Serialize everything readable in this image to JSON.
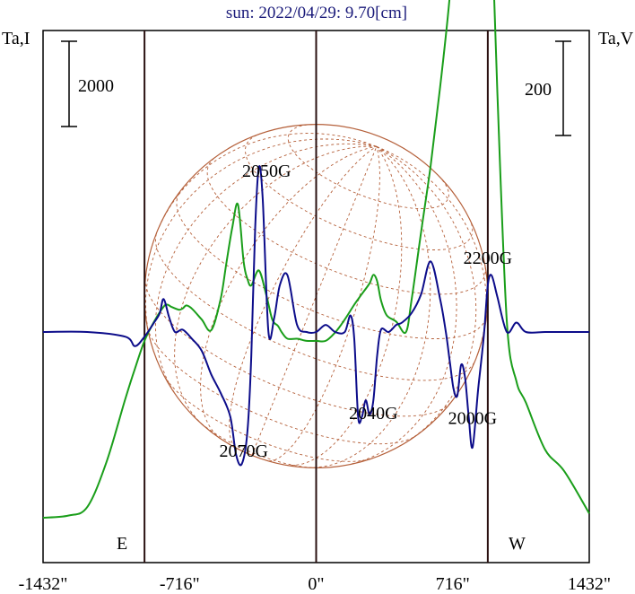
{
  "chart_data": {
    "type": "line",
    "title": "sun: 2022/04/29: 9.70[cm]",
    "left_axis_label": "Ta,I",
    "right_axis_label": "Ta,V",
    "left_scale_bar": "2000",
    "right_scale_bar": "200",
    "x_ticks": [
      "-1432\"",
      "-716\"",
      "0\"",
      "716\"",
      "1432\""
    ],
    "x_tick_values": [
      -1432,
      -716,
      0,
      716,
      1432
    ],
    "xlim": [
      -1432,
      1432
    ],
    "vertical_markers": [
      -900,
      0,
      900
    ],
    "edge_labels": [
      "E",
      "W"
    ],
    "solar_radius_arcsec": 900,
    "annotations": [
      {
        "text": "2050G",
        "x": -260,
        "yV": 330
      },
      {
        "text": "2200G",
        "x": 900,
        "yV": 145
      },
      {
        "text": "2040G",
        "x": 300,
        "yV": -185
      },
      {
        "text": "2000G",
        "x": 820,
        "yV": -195
      },
      {
        "text": "2070G",
        "x": -380,
        "yV": -265
      }
    ],
    "series": [
      {
        "axis": "Ta,I",
        "color": "#1a9e1a",
        "x": [
          -1432,
          -1300,
          -1200,
          -1100,
          -1000,
          -950,
          -900,
          -850,
          -800,
          -780,
          -760,
          -720,
          -700,
          -680,
          -650,
          -600,
          -550,
          -500,
          -470,
          -440,
          -410,
          -380,
          -360,
          -340,
          -300,
          -260,
          -230,
          -200,
          -180,
          -150,
          -100,
          -50,
          0,
          50,
          100,
          150,
          200,
          240,
          280,
          300,
          320,
          340,
          370,
          420,
          470,
          500,
          550,
          600,
          650,
          700,
          730,
          750,
          780,
          800,
          820,
          850,
          880,
          900,
          920,
          950,
          1000,
          1050,
          1100,
          1200,
          1300,
          1432
        ],
        "y": [
          0,
          50,
          250,
          1300,
          2800,
          3500,
          4150,
          4600,
          4950,
          5000,
          4950,
          4880,
          4910,
          4980,
          4900,
          4650,
          4400,
          5150,
          6000,
          6800,
          7350,
          6000,
          5600,
          5450,
          5800,
          5200,
          4650,
          4500,
          4350,
          4200,
          4200,
          4150,
          4150,
          4150,
          4350,
          4650,
          5000,
          5250,
          5500,
          5700,
          5550,
          5100,
          4750,
          4600,
          4350,
          5100,
          6700,
          8250,
          10100,
          12200,
          14000,
          14500,
          15200,
          15800,
          15200,
          14600,
          15000,
          15500,
          14000,
          10000,
          4600,
          3200,
          2700,
          1600,
          1100,
          100
        ]
      },
      {
        "axis": "Ta,V",
        "color": "#0c0c8a",
        "x": [
          -1432,
          -1200,
          -1000,
          -950,
          -900,
          -850,
          -820,
          -800,
          -770,
          -740,
          -700,
          -650,
          -600,
          -550,
          -500,
          -450,
          -420,
          -390,
          -360,
          -340,
          -320,
          -300,
          -280,
          -250,
          -220,
          -190,
          -150,
          -100,
          -50,
          0,
          50,
          100,
          150,
          180,
          200,
          220,
          240,
          260,
          280,
          300,
          320,
          340,
          380,
          420,
          450,
          500,
          550,
          600,
          650,
          680,
          700,
          720,
          740,
          760,
          780,
          800,
          820,
          850,
          880,
          900,
          920,
          950,
          1000,
          1050,
          1100,
          1200,
          1300,
          1432
        ],
        "y": [
          0,
          0,
          -10,
          -30,
          -10,
          20,
          40,
          70,
          30,
          0,
          5,
          -15,
          -40,
          -90,
          -130,
          -180,
          -260,
          -280,
          -210,
          -50,
          220,
          350,
          280,
          0,
          30,
          100,
          120,
          15,
          0,
          0,
          15,
          0,
          0,
          35,
          -15,
          -180,
          -180,
          -145,
          -175,
          -145,
          -50,
          5,
          0,
          15,
          20,
          40,
          80,
          150,
          70,
          0,
          -60,
          -120,
          -135,
          -70,
          -95,
          -180,
          -245,
          -120,
          -5,
          100,
          120,
          75,
          0,
          20,
          0,
          0,
          0,
          0
        ]
      }
    ]
  }
}
